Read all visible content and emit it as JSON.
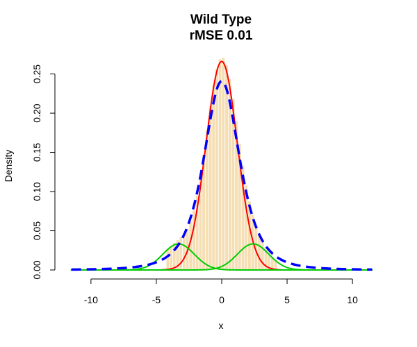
{
  "chart_data": {
    "type": "histogram",
    "title": "Wild Type",
    "subtitle": "rMSE 0.01",
    "xlabel": "x",
    "ylabel": "Density",
    "xlim": [
      -11.8,
      11.8
    ],
    "ylim": [
      0,
      0.27
    ],
    "x_ticks": [
      -10,
      -5,
      0,
      5,
      10
    ],
    "y_ticks": [
      0.0,
      0.05,
      0.1,
      0.15,
      0.2,
      0.25
    ],
    "y_tick_labels": [
      "0.00",
      "0.05",
      "0.10",
      "0.15",
      "0.20",
      "0.25"
    ],
    "grid": false,
    "legend": "none",
    "histogram": {
      "bin_width": 0.25,
      "range": [
        -4.25,
        4.25
      ],
      "fill_color": "#f5deb3",
      "border_color": "#ffffff"
    },
    "series": [
      {
        "style": "solid",
        "color": "#ff0000",
        "width": 2,
        "components": [
          {
            "weight": 0.8,
            "mean": 0.0,
            "sd": 1.2
          }
        ],
        "x_range": [
          -4.6,
          4.6
        ]
      },
      {
        "style": "solid",
        "color": "#00cc00",
        "width": 2,
        "components": [
          {
            "weight": 0.1,
            "mean": 2.4,
            "sd": 1.2
          }
        ],
        "x_range": [
          -11.5,
          11.5
        ]
      },
      {
        "style": "solid",
        "color": "#00cc00",
        "width": 2,
        "components": [
          {
            "weight": 0.1,
            "mean": -3.3,
            "sd": 1.2
          }
        ],
        "x_range": [
          -11.5,
          11.5
        ]
      },
      {
        "style": "dashed",
        "color": "#0000ff",
        "width": 3.5,
        "components": [
          {
            "weight": 0.95,
            "mean": 0.0,
            "sd": 1.45,
            "t_df": 3
          }
        ],
        "x_range": [
          -11.5,
          11.5
        ]
      }
    ]
  }
}
